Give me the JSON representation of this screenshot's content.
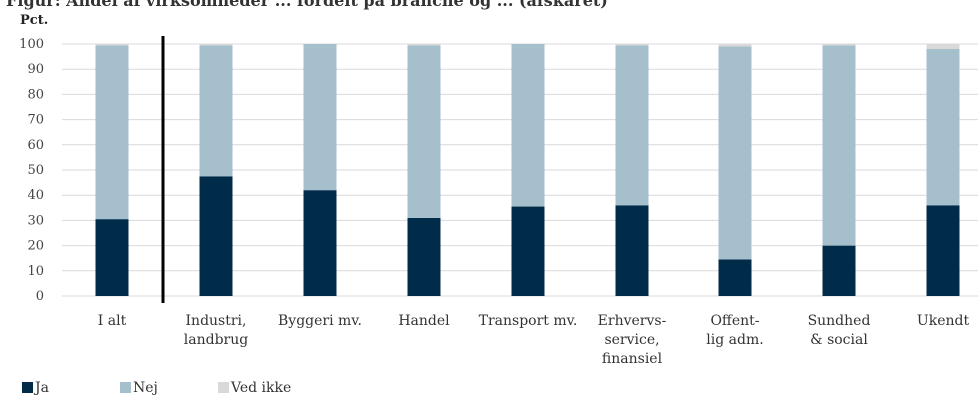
{
  "chart_data": {
    "type": "bar",
    "stacked": true,
    "title": "",
    "ylabel": "Pct.",
    "xlabel": "",
    "ylim": [
      0,
      100
    ],
    "yticks": [
      0,
      10,
      20,
      30,
      40,
      50,
      60,
      70,
      80,
      90,
      100
    ],
    "grid": true,
    "legend_position": "bottom-left",
    "categories": [
      [
        "I alt"
      ],
      [
        "Industri,",
        "landbrug"
      ],
      [
        "Byggeri mv."
      ],
      [
        "Handel"
      ],
      [
        "Transport mv."
      ],
      [
        "Erhvervs-",
        "service,",
        "finansiel"
      ],
      [
        "Offent-",
        "lig adm."
      ],
      [
        "Sundhed",
        "& social"
      ],
      [
        "Ukendt"
      ]
    ],
    "series": [
      {
        "name": "Ja",
        "color": "#002B49",
        "values": [
          30.5,
          47.5,
          42,
          31,
          35.5,
          36,
          14.5,
          20,
          36
        ]
      },
      {
        "name": "Nej",
        "color": "#A5BFCD",
        "values": [
          69,
          52,
          58,
          68.5,
          64.5,
          63.5,
          84.5,
          79.5,
          62
        ]
      },
      {
        "name": "Ved ikke",
        "color": "#D9D9D9",
        "values": [
          0.5,
          0.5,
          0,
          0.5,
          0,
          0.5,
          1,
          0.5,
          2
        ]
      }
    ]
  },
  "heading_fragment": "Figur: Andel af virksomheder ... fordelt på branche og ... (afskåret)"
}
